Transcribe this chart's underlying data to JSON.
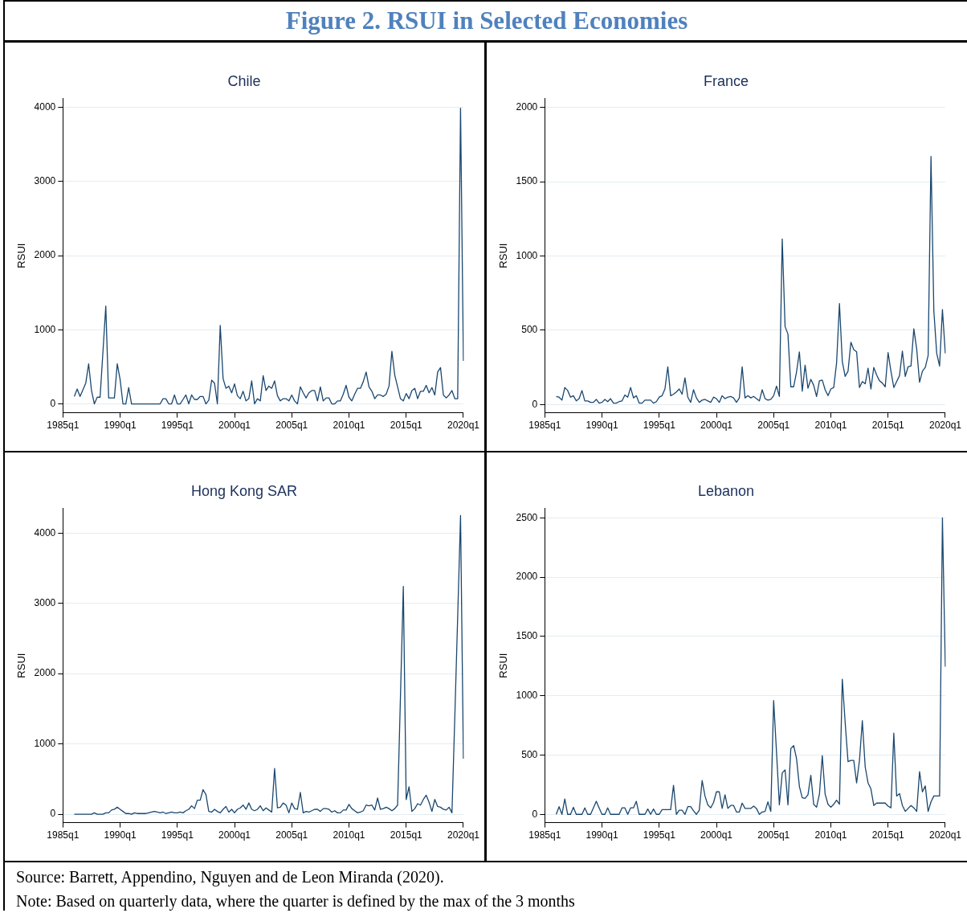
{
  "chart_data": [
    {
      "type": "other",
      "title": "Figure 2. RSUI in Selected Economies"
    },
    {
      "type": "line",
      "title": "Chile",
      "ylabel": "RSUI",
      "marker": "none",
      "line_style": "solid",
      "grid": "y",
      "ylim": [
        -120,
        4120
      ],
      "yticks": [
        0,
        1000,
        2000,
        3000,
        4000
      ],
      "categories": [
        "1985q1",
        null,
        null,
        null,
        null,
        null,
        null,
        null,
        null,
        null,
        null,
        null,
        null,
        null,
        null,
        null,
        null,
        null,
        null,
        null,
        "1990q1",
        null,
        null,
        null,
        null,
        null,
        null,
        null,
        null,
        null,
        null,
        null,
        null,
        null,
        null,
        null,
        null,
        null,
        null,
        null,
        "1995q1",
        null,
        null,
        null,
        null,
        null,
        null,
        null,
        null,
        null,
        null,
        null,
        null,
        null,
        null,
        null,
        null,
        null,
        null,
        null,
        "2000q1",
        null,
        null,
        null,
        null,
        null,
        null,
        null,
        null,
        null,
        null,
        null,
        null,
        null,
        null,
        null,
        null,
        null,
        null,
        null,
        "2005q1",
        null,
        null,
        null,
        null,
        null,
        null,
        null,
        null,
        null,
        null,
        null,
        null,
        null,
        null,
        null,
        null,
        null,
        null,
        null,
        "2010q1",
        null,
        null,
        null,
        null,
        null,
        null,
        null,
        null,
        null,
        null,
        null,
        null,
        null,
        null,
        null,
        null,
        null,
        null,
        null,
        "2015q1",
        null,
        null,
        null,
        null,
        null,
        null,
        null,
        null,
        null,
        null,
        null,
        null,
        null,
        null,
        null,
        null,
        null,
        null,
        null,
        "2020q1"
      ],
      "series": [
        {
          "color": "#1a476f",
          "values": [
            null,
            null,
            null,
            null,
            100,
            200,
            100,
            190,
            280,
            540,
            180,
            0,
            90,
            90,
            700,
            1320,
            80,
            80,
            80,
            540,
            330,
            0,
            0,
            220,
            0,
            0,
            0,
            0,
            0,
            0,
            0,
            0,
            0,
            0,
            0,
            70,
            70,
            0,
            0,
            120,
            0,
            0,
            60,
            120,
            0,
            120,
            60,
            60,
            100,
            100,
            0,
            50,
            320,
            280,
            0,
            1060,
            340,
            210,
            240,
            150,
            270,
            110,
            70,
            170,
            40,
            70,
            310,
            0,
            70,
            40,
            380,
            180,
            240,
            210,
            310,
            110,
            40,
            70,
            70,
            40,
            120,
            40,
            0,
            230,
            150,
            80,
            150,
            180,
            180,
            40,
            230,
            40,
            80,
            80,
            0,
            0,
            40,
            40,
            130,
            250,
            90,
            40,
            130,
            210,
            210,
            300,
            430,
            230,
            170,
            70,
            120,
            120,
            100,
            130,
            240,
            710,
            390,
            230,
            70,
            40,
            140,
            70,
            180,
            210,
            70,
            170,
            170,
            250,
            150,
            220,
            120,
            430,
            490,
            120,
            80,
            120,
            180,
            70,
            70,
            3990,
            580
          ]
        }
      ]
    },
    {
      "type": "line",
      "title": "France",
      "ylabel": "RSUI",
      "marker": "none",
      "line_style": "solid",
      "grid": "y",
      "ylim": [
        -55,
        2060
      ],
      "yticks": [
        0,
        500,
        1000,
        1500,
        2000
      ],
      "categories": [
        "1985q1",
        null,
        null,
        null,
        null,
        null,
        null,
        null,
        null,
        null,
        null,
        null,
        null,
        null,
        null,
        null,
        null,
        null,
        null,
        null,
        "1990q1",
        null,
        null,
        null,
        null,
        null,
        null,
        null,
        null,
        null,
        null,
        null,
        null,
        null,
        null,
        null,
        null,
        null,
        null,
        null,
        "1995q1",
        null,
        null,
        null,
        null,
        null,
        null,
        null,
        null,
        null,
        null,
        null,
        null,
        null,
        null,
        null,
        null,
        null,
        null,
        null,
        "2000q1",
        null,
        null,
        null,
        null,
        null,
        null,
        null,
        null,
        null,
        null,
        null,
        null,
        null,
        null,
        null,
        null,
        null,
        null,
        null,
        "2005q1",
        null,
        null,
        null,
        null,
        null,
        null,
        null,
        null,
        null,
        null,
        null,
        null,
        null,
        null,
        null,
        null,
        null,
        null,
        null,
        "2010q1",
        null,
        null,
        null,
        null,
        null,
        null,
        null,
        null,
        null,
        null,
        null,
        null,
        null,
        null,
        null,
        null,
        null,
        null,
        null,
        "2015q1",
        null,
        null,
        null,
        null,
        null,
        null,
        null,
        null,
        null,
        null,
        null,
        null,
        null,
        null,
        null,
        null,
        null,
        null,
        null,
        "2020q1"
      ],
      "series": [
        {
          "color": "#1a476f",
          "values": [
            null,
            null,
            null,
            null,
            55,
            50,
            30,
            115,
            95,
            50,
            60,
            25,
            40,
            95,
            25,
            25,
            15,
            15,
            35,
            10,
            15,
            35,
            20,
            40,
            10,
            10,
            20,
            25,
            65,
            50,
            115,
            45,
            60,
            10,
            10,
            30,
            30,
            30,
            10,
            20,
            50,
            60,
            105,
            255,
            60,
            70,
            85,
            105,
            70,
            180,
            50,
            15,
            100,
            45,
            15,
            30,
            35,
            25,
            15,
            50,
            40,
            15,
            60,
            40,
            50,
            55,
            45,
            15,
            45,
            255,
            45,
            60,
            45,
            55,
            40,
            25,
            100,
            40,
            30,
            35,
            60,
            125,
            55,
            1115,
            525,
            475,
            120,
            120,
            220,
            355,
            90,
            265,
            110,
            170,
            130,
            55,
            160,
            165,
            100,
            60,
            105,
            115,
            280,
            680,
            290,
            190,
            225,
            420,
            370,
            355,
            115,
            155,
            140,
            245,
            105,
            250,
            200,
            160,
            145,
            120,
            350,
            225,
            115,
            155,
            195,
            360,
            190,
            255,
            260,
            510,
            375,
            150,
            225,
            250,
            330,
            1670,
            630,
            345,
            260,
            640,
            345
          ]
        }
      ]
    },
    {
      "type": "line",
      "title": "Hong Kong SAR",
      "ylabel": "RSUI",
      "marker": "none",
      "line_style": "solid",
      "grid": "y",
      "ylim": [
        -120,
        4350
      ],
      "yticks": [
        0,
        1000,
        2000,
        3000,
        4000
      ],
      "categories": [
        "1985q1",
        null,
        null,
        null,
        null,
        null,
        null,
        null,
        null,
        null,
        null,
        null,
        null,
        null,
        null,
        null,
        null,
        null,
        null,
        null,
        "1990q1",
        null,
        null,
        null,
        null,
        null,
        null,
        null,
        null,
        null,
        null,
        null,
        null,
        null,
        null,
        null,
        null,
        null,
        null,
        null,
        "1995q1",
        null,
        null,
        null,
        null,
        null,
        null,
        null,
        null,
        null,
        null,
        null,
        null,
        null,
        null,
        null,
        null,
        null,
        null,
        null,
        "2000q1",
        null,
        null,
        null,
        null,
        null,
        null,
        null,
        null,
        null,
        null,
        null,
        null,
        null,
        null,
        null,
        null,
        null,
        null,
        null,
        "2005q1",
        null,
        null,
        null,
        null,
        null,
        null,
        null,
        null,
        null,
        null,
        null,
        null,
        null,
        null,
        null,
        null,
        null,
        null,
        null,
        "2010q1",
        null,
        null,
        null,
        null,
        null,
        null,
        null,
        null,
        null,
        null,
        null,
        null,
        null,
        null,
        null,
        null,
        null,
        null,
        null,
        "2015q1",
        null,
        null,
        null,
        null,
        null,
        null,
        null,
        null,
        null,
        null,
        null,
        null,
        null,
        null,
        null,
        null,
        null,
        null,
        null,
        "2020q1"
      ],
      "series": [
        {
          "color": "#1a476f",
          "values": [
            null,
            null,
            null,
            null,
            0,
            0,
            0,
            0,
            0,
            0,
            0,
            20,
            0,
            0,
            0,
            20,
            20,
            60,
            70,
            100,
            70,
            40,
            10,
            10,
            0,
            20,
            10,
            10,
            10,
            10,
            20,
            30,
            40,
            30,
            20,
            30,
            10,
            20,
            30,
            20,
            20,
            30,
            20,
            50,
            70,
            120,
            80,
            200,
            200,
            350,
            280,
            40,
            30,
            70,
            40,
            20,
            70,
            110,
            30,
            70,
            20,
            70,
            90,
            130,
            70,
            160,
            70,
            50,
            70,
            120,
            50,
            90,
            60,
            30,
            650,
            90,
            100,
            160,
            130,
            20,
            160,
            80,
            70,
            310,
            20,
            40,
            30,
            50,
            70,
            70,
            40,
            80,
            80,
            70,
            30,
            50,
            20,
            20,
            60,
            60,
            140,
            80,
            50,
            20,
            30,
            50,
            130,
            120,
            130,
            60,
            230,
            70,
            80,
            100,
            80,
            50,
            80,
            130,
            1680,
            3240,
            210,
            390,
            40,
            80,
            150,
            130,
            210,
            270,
            170,
            40,
            210,
            110,
            100,
            70,
            60,
            100,
            20,
            1390,
            2810,
            4250,
            790
          ]
        }
      ]
    },
    {
      "type": "line",
      "title": "Lebanon",
      "ylabel": "RSUI",
      "marker": "none",
      "line_style": "solid",
      "grid": "y",
      "ylim": [
        -70,
        2580
      ],
      "yticks": [
        0,
        500,
        1000,
        1500,
        2000,
        2500
      ],
      "categories": [
        "1985q1",
        null,
        null,
        null,
        null,
        null,
        null,
        null,
        null,
        null,
        null,
        null,
        null,
        null,
        null,
        null,
        null,
        null,
        null,
        null,
        "1990q1",
        null,
        null,
        null,
        null,
        null,
        null,
        null,
        null,
        null,
        null,
        null,
        null,
        null,
        null,
        null,
        null,
        null,
        null,
        null,
        "1995q1",
        null,
        null,
        null,
        null,
        null,
        null,
        null,
        null,
        null,
        null,
        null,
        null,
        null,
        null,
        null,
        null,
        null,
        null,
        null,
        "2000q1",
        null,
        null,
        null,
        null,
        null,
        null,
        null,
        null,
        null,
        null,
        null,
        null,
        null,
        null,
        null,
        null,
        null,
        null,
        null,
        "2005q1",
        null,
        null,
        null,
        null,
        null,
        null,
        null,
        null,
        null,
        null,
        null,
        null,
        null,
        null,
        null,
        null,
        null,
        null,
        null,
        "2010q1",
        null,
        null,
        null,
        null,
        null,
        null,
        null,
        null,
        null,
        null,
        null,
        null,
        null,
        null,
        null,
        null,
        null,
        null,
        null,
        "2015q1",
        null,
        null,
        null,
        null,
        null,
        null,
        null,
        null,
        null,
        null,
        null,
        null,
        null,
        null,
        null,
        null,
        null,
        null,
        null,
        "2020q1"
      ],
      "series": [
        {
          "color": "#1a476f",
          "values": [
            null,
            null,
            null,
            null,
            0,
            65,
            0,
            130,
            0,
            0,
            60,
            0,
            0,
            0,
            55,
            0,
            0,
            55,
            110,
            55,
            0,
            0,
            55,
            0,
            0,
            0,
            0,
            55,
            55,
            0,
            55,
            55,
            110,
            0,
            0,
            0,
            45,
            0,
            45,
            0,
            0,
            40,
            40,
            40,
            40,
            245,
            0,
            35,
            35,
            0,
            65,
            65,
            30,
            0,
            35,
            285,
            155,
            80,
            55,
            100,
            190,
            190,
            50,
            165,
            50,
            75,
            75,
            20,
            20,
            95,
            50,
            50,
            50,
            70,
            50,
            0,
            20,
            25,
            105,
            25,
            960,
            525,
            80,
            350,
            375,
            80,
            555,
            580,
            470,
            235,
            140,
            135,
            165,
            330,
            85,
            60,
            170,
            495,
            170,
            85,
            60,
            85,
            120,
            85,
            1140,
            775,
            445,
            455,
            455,
            265,
            455,
            790,
            400,
            265,
            215,
            75,
            95,
            95,
            95,
            95,
            70,
            55,
            685,
            155,
            175,
            75,
            25,
            50,
            75,
            55,
            25,
            360,
            190,
            240,
            25,
            105,
            155,
            155,
            155,
            2500,
            1245
          ]
        }
      ]
    },
    {
      "type": "other",
      "annotations": [
        "Source: Barrett,  Appendino, Nguyen and de Leon Miranda (2020).",
        "Note: Based on quarterly data, where the quarter is defined by the max of the 3 months"
      ]
    }
  ]
}
